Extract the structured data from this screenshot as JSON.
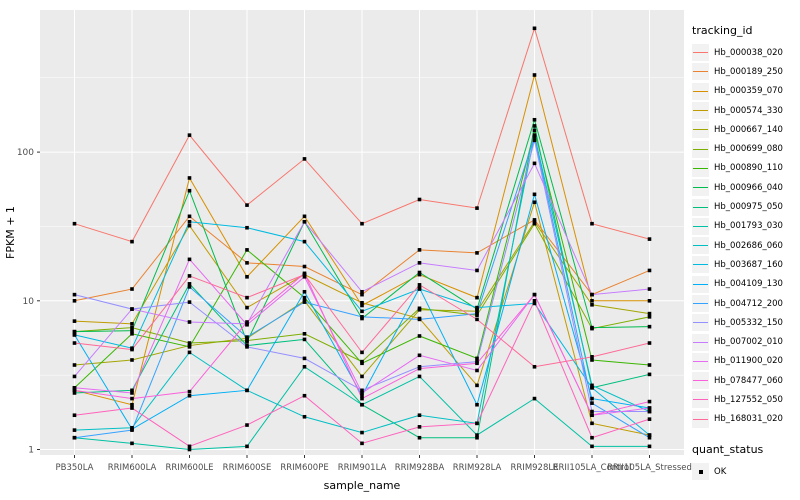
{
  "chart_data": {
    "type": "line",
    "title": "",
    "xlabel": "sample_name",
    "ylabel": "FPKM + 1",
    "y_scale": "log10",
    "y_ticks": [
      1,
      10,
      100
    ],
    "y_minor_ticks": [
      3.162,
      31.62,
      316.2
    ],
    "ylim": [
      0.92,
      900
    ],
    "grid": "on",
    "legend_position": "right",
    "legend_title": "tracking_id",
    "legend2_title": "quant_status",
    "legend2_items": [
      {
        "label": "OK",
        "marker": "black-square"
      }
    ],
    "point_marker": "black-square",
    "categories": [
      "PB350LA",
      "RRIM600LA",
      "RRIM600LE",
      "RRIM600SE",
      "RRIM600PE",
      "RRIM901LA",
      "RRIM928BA",
      "RRIM928LA",
      "RRIM928LE",
      "RRII105LA_Control",
      "RRII105LA_Stressed"
    ],
    "series": [
      {
        "name": "Hb_000038_020",
        "color": "#F8766D",
        "values": [
          33,
          25,
          130,
          44,
          90,
          33,
          48,
          42,
          680,
          33,
          26
        ]
      },
      {
        "name": "Hb_000189_250",
        "color": "#EA8331",
        "values": [
          10,
          12,
          37,
          18,
          17,
          11,
          22,
          21,
          35,
          11,
          16
        ]
      },
      {
        "name": "Hb_000359_070",
        "color": "#D89000",
        "values": [
          2.5,
          2.0,
          67,
          14.5,
          37,
          9.3,
          15,
          10.5,
          330,
          10,
          10
        ]
      },
      {
        "name": "Hb_000574_330",
        "color": "#C09B00",
        "values": [
          7.3,
          7.0,
          32,
          9.0,
          15,
          9.7,
          7.6,
          2.7,
          46,
          1.5,
          1.25
        ]
      },
      {
        "name": "Hb_000667_140",
        "color": "#A3A500",
        "values": [
          3.7,
          4.0,
          5.0,
          5.6,
          10,
          3.1,
          8.7,
          8.5,
          34,
          9.4,
          8.2
        ]
      },
      {
        "name": "Hb_000699_080",
        "color": "#7CAE00",
        "values": [
          6.2,
          6.6,
          5.2,
          5.4,
          6.0,
          3.9,
          8.9,
          8.0,
          33,
          6.5,
          7.8
        ]
      },
      {
        "name": "Hb_000890_110",
        "color": "#39B600",
        "values": [
          2.6,
          6.0,
          4.9,
          22,
          10.5,
          3.8,
          5.8,
          4.1,
          140,
          4.0,
          3.7
        ]
      },
      {
        "name": "Hb_000966_040",
        "color": "#00BB4E",
        "values": [
          6.2,
          6.3,
          55,
          5.3,
          34,
          7.6,
          15.5,
          8.8,
          165,
          6.6,
          6.7
        ]
      },
      {
        "name": "Hb_000975_050",
        "color": "#00BF7D",
        "values": [
          2.4,
          2.5,
          13,
          5.0,
          5.5,
          2.0,
          1.2,
          1.2,
          150,
          2.6,
          3.2
        ]
      },
      {
        "name": "Hb_001793_030",
        "color": "#00C1A3",
        "values": [
          1.2,
          1.1,
          1.0,
          1.05,
          3.6,
          2.0,
          3.1,
          1.25,
          2.2,
          1.05,
          1.05
        ]
      },
      {
        "name": "Hb_002686_060",
        "color": "#00BFC4",
        "values": [
          1.35,
          1.4,
          4.5,
          2.5,
          1.66,
          1.3,
          1.7,
          1.5,
          130,
          2.7,
          1.8
        ]
      },
      {
        "name": "Hb_003687_160",
        "color": "#00BAE0",
        "values": [
          5.9,
          4.8,
          34,
          31,
          25,
          8.5,
          12,
          9.0,
          9.6,
          2.6,
          1.25
        ]
      },
      {
        "name": "Hb_004109_130",
        "color": "#00B0F6",
        "values": [
          5.9,
          1.37,
          2.3,
          2.5,
          11.5,
          2.3,
          12.2,
          2.0,
          52,
          2.2,
          1.9
        ]
      },
      {
        "name": "Hb_004712_200",
        "color": "#35A2FF",
        "values": [
          1.2,
          1.35,
          12.4,
          5.7,
          9.8,
          7.8,
          7.5,
          8.2,
          127,
          2.05,
          1.2
        ]
      },
      {
        "name": "Hb_005332_150",
        "color": "#9590FF",
        "values": [
          11,
          8.8,
          9.8,
          4.9,
          4.1,
          2.5,
          3.6,
          3.9,
          120,
          1.8,
          1.8
        ]
      },
      {
        "name": "Hb_007002_010",
        "color": "#C77CFF",
        "values": [
          3.1,
          8.8,
          7.2,
          7.0,
          34,
          11.5,
          18,
          16,
          84,
          11,
          12
        ]
      },
      {
        "name": "Hb_011900_020",
        "color": "#E76BF3",
        "values": [
          2.6,
          2.4,
          19,
          6.9,
          14.5,
          2.4,
          4.3,
          3.4,
          11,
          1.7,
          1.9
        ]
      },
      {
        "name": "Hb_078477_060",
        "color": "#FA62DB",
        "values": [
          2.5,
          2.2,
          2.45,
          7.2,
          15.3,
          2.2,
          3.5,
          3.8,
          11,
          1.7,
          2.1
        ]
      },
      {
        "name": "Hb_127552_050",
        "color": "#FF62BC",
        "values": [
          1.7,
          1.9,
          1.05,
          1.46,
          2.3,
          1.1,
          1.42,
          1.5,
          10,
          1.2,
          1.6
        ]
      },
      {
        "name": "Hb_168031_020",
        "color": "#FF6A98",
        "values": [
          5.2,
          4.7,
          14.7,
          10.5,
          15,
          4.5,
          12.8,
          7.5,
          3.6,
          4.2,
          5.2
        ]
      }
    ]
  },
  "style": {
    "panel_bg": "#EBEBEB",
    "grid_color": "#FFFFFF",
    "tick_text_color": "#4D4D4D",
    "axis_title_color": "#000000",
    "point_color": "#000000"
  }
}
